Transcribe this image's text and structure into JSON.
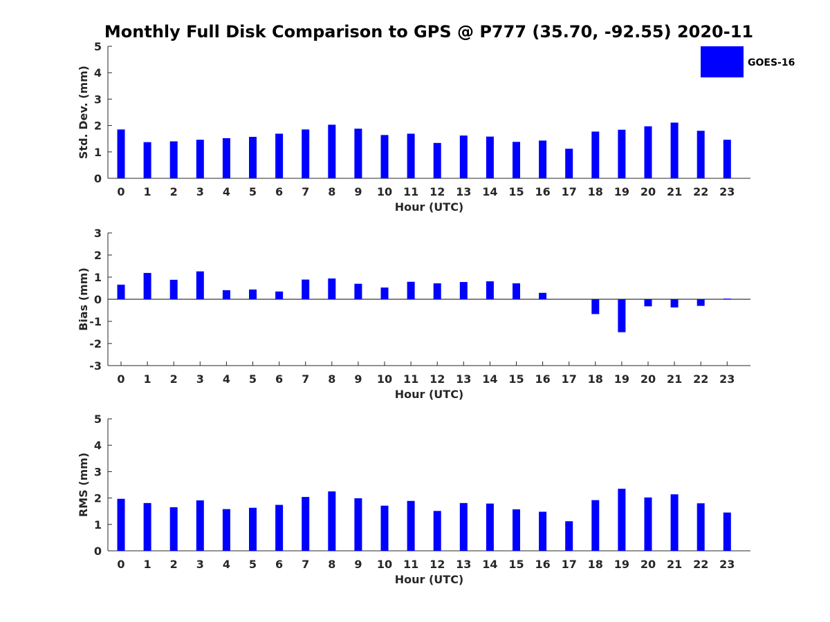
{
  "title": "Monthly Full Disk Comparison to GPS @ P777 (35.70, -92.55) 2020-11",
  "legend": {
    "entries": [
      "GOES-16"
    ],
    "placement": "top-right"
  },
  "series_color": "#0000ff",
  "chart_data": [
    {
      "type": "bar",
      "xlabel": "Hour (UTC)",
      "ylabel": "Std. Dev. (mm)",
      "ylim": [
        0,
        5
      ],
      "yticks": [
        0,
        1,
        2,
        3,
        4,
        5
      ],
      "grid": false,
      "categories": [
        "0",
        "1",
        "2",
        "3",
        "4",
        "5",
        "6",
        "7",
        "8",
        "9",
        "10",
        "11",
        "12",
        "13",
        "14",
        "15",
        "16",
        "17",
        "18",
        "19",
        "20",
        "21",
        "22",
        "23"
      ],
      "series": [
        {
          "name": "GOES-16",
          "values": [
            1.85,
            1.37,
            1.4,
            1.46,
            1.52,
            1.57,
            1.69,
            1.85,
            2.03,
            1.88,
            1.64,
            1.69,
            1.34,
            1.62,
            1.58,
            1.38,
            1.43,
            1.12,
            1.77,
            1.84,
            1.97,
            2.11,
            1.8,
            1.46
          ]
        }
      ]
    },
    {
      "type": "bar",
      "xlabel": "Hour (UTC)",
      "ylabel": "Bias (mm)",
      "ylim": [
        -3,
        3
      ],
      "yticks": [
        -3,
        -2,
        -1,
        0,
        1,
        2,
        3
      ],
      "grid": false,
      "categories": [
        "0",
        "1",
        "2",
        "3",
        "4",
        "5",
        "6",
        "7",
        "8",
        "9",
        "10",
        "11",
        "12",
        "13",
        "14",
        "15",
        "16",
        "17",
        "18",
        "19",
        "20",
        "21",
        "22",
        "23"
      ],
      "series": [
        {
          "name": "GOES-16",
          "values": [
            0.66,
            1.19,
            0.88,
            1.26,
            0.41,
            0.44,
            0.35,
            0.89,
            0.94,
            0.7,
            0.53,
            0.79,
            0.72,
            0.78,
            0.81,
            0.72,
            0.29,
            0.0,
            -0.67,
            -1.49,
            -0.32,
            -0.37,
            -0.3,
            0.03
          ]
        }
      ]
    },
    {
      "type": "bar",
      "xlabel": "Hour (UTC)",
      "ylabel": "RMS (mm)",
      "ylim": [
        0,
        5
      ],
      "yticks": [
        0,
        1,
        2,
        3,
        4,
        5
      ],
      "grid": false,
      "categories": [
        "0",
        "1",
        "2",
        "3",
        "4",
        "5",
        "6",
        "7",
        "8",
        "9",
        "10",
        "11",
        "12",
        "13",
        "14",
        "15",
        "16",
        "17",
        "18",
        "19",
        "20",
        "21",
        "22",
        "23"
      ],
      "series": [
        {
          "name": "GOES-16",
          "values": [
            1.97,
            1.81,
            1.65,
            1.91,
            1.58,
            1.63,
            1.74,
            2.04,
            2.25,
            1.99,
            1.71,
            1.89,
            1.51,
            1.81,
            1.79,
            1.57,
            1.48,
            1.12,
            1.92,
            2.35,
            2.02,
            2.14,
            1.8,
            1.45
          ]
        }
      ]
    }
  ]
}
